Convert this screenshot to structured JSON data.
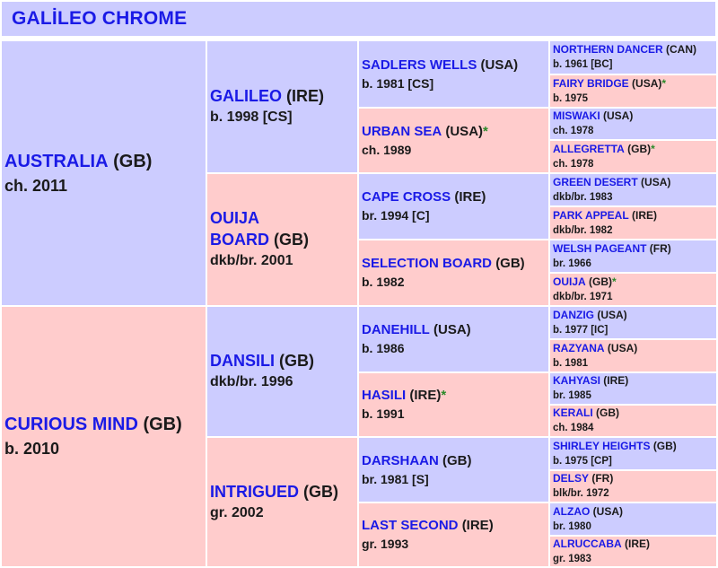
{
  "title": "GALİLEO CHROME",
  "pedigree": {
    "sire": {
      "name": "AUSTRALIA",
      "country": "(GB)",
      "star": "",
      "info": "ch. 2011"
    },
    "dam": {
      "name": "CURIOUS MIND",
      "country": "(GB)",
      "star": "",
      "info": "b. 2010"
    },
    "ss": {
      "name": "GALILEO",
      "country": "(IRE)",
      "star": "",
      "info": "b. 1998 [CS]"
    },
    "sd": {
      "name": "OUIJA BOARD",
      "name_line1": "OUIJA",
      "name_line2": "BOARD",
      "country": "(GB)",
      "star": "",
      "info": "dkb/br. 2001"
    },
    "ds": {
      "name": "DANSILI",
      "country": "(GB)",
      "star": "",
      "info": "dkb/br. 1996"
    },
    "dd": {
      "name": "INTRIGUED",
      "country": "(GB)",
      "star": "",
      "info": "gr. 2002"
    },
    "sss": {
      "name": "SADLERS WELLS",
      "country": "(USA)",
      "star": "",
      "info": "b. 1981 [CS]"
    },
    "ssd": {
      "name": "URBAN SEA",
      "country": "(USA)",
      "star": "*",
      "info": "ch. 1989"
    },
    "sds": {
      "name": "CAPE CROSS",
      "country": "(IRE)",
      "star": "",
      "info": "br. 1994 [C]"
    },
    "sdd": {
      "name": "SELECTION BOARD",
      "country": "(GB)",
      "star": "",
      "info": "b. 1982"
    },
    "dss": {
      "name": "DANEHILL",
      "country": "(USA)",
      "star": "",
      "info": "b. 1986"
    },
    "dsd": {
      "name": "HASILI",
      "country": "(IRE)",
      "star": "*",
      "info": "b. 1991"
    },
    "dds": {
      "name": "DARSHAAN",
      "country": "(GB)",
      "star": "",
      "info": "br. 1981 [S]"
    },
    "ddd": {
      "name": "LAST SECOND",
      "country": "(IRE)",
      "star": "",
      "info": "gr. 1993"
    },
    "ssss": {
      "name": "NORTHERN DANCER",
      "country": "(CAN)",
      "star": "",
      "info": "b. 1961 [BC]"
    },
    "sssd": {
      "name": "FAIRY BRIDGE",
      "country": "(USA)",
      "star": "*",
      "info": "b. 1975"
    },
    "ssds": {
      "name": "MISWAKI",
      "country": "(USA)",
      "star": "",
      "info": "ch. 1978"
    },
    "ssdd": {
      "name": "ALLEGRETTA",
      "country": "(GB)",
      "star": "*",
      "info": "ch. 1978"
    },
    "sdss": {
      "name": "GREEN DESERT",
      "country": "(USA)",
      "star": "",
      "info": "dkb/br. 1983"
    },
    "sdsd": {
      "name": "PARK APPEAL",
      "country": "(IRE)",
      "star": "",
      "info": "dkb/br. 1982"
    },
    "sdds": {
      "name": "WELSH PAGEANT",
      "country": "(FR)",
      "star": "",
      "info": "br. 1966"
    },
    "sddd": {
      "name": "OUIJA",
      "country": "(GB)",
      "star": "*",
      "info": "dkb/br. 1971"
    },
    "dsss": {
      "name": "DANZIG",
      "country": "(USA)",
      "star": "",
      "info": "b. 1977 [IC]"
    },
    "dssd": {
      "name": "RAZYANA",
      "country": "(USA)",
      "star": "",
      "info": "b. 1981"
    },
    "dsds": {
      "name": "KAHYASI",
      "country": "(IRE)",
      "star": "",
      "info": "br. 1985"
    },
    "dsdd": {
      "name": "KERALI",
      "country": "(GB)",
      "star": "",
      "info": "ch. 1984"
    },
    "ddss": {
      "name": "SHIRLEY HEIGHTS",
      "country": "(GB)",
      "star": "",
      "info": "b. 1975 [CP]"
    },
    "ddsd": {
      "name": "DELSY",
      "country": "(FR)",
      "star": "",
      "info": "blk/br. 1972"
    },
    "ddds": {
      "name": "ALZAO",
      "country": "(USA)",
      "star": "",
      "info": "br. 1980"
    },
    "dddd": {
      "name": "ALRUCCABA",
      "country": "(IRE)",
      "star": "",
      "info": "gr. 1983"
    }
  },
  "colors": {
    "male_bg": "#ccccff",
    "female_bg": "#ffcccc",
    "name": "#1a1ae6",
    "star": "#2a8a2a",
    "text": "#1a1a1a"
  }
}
